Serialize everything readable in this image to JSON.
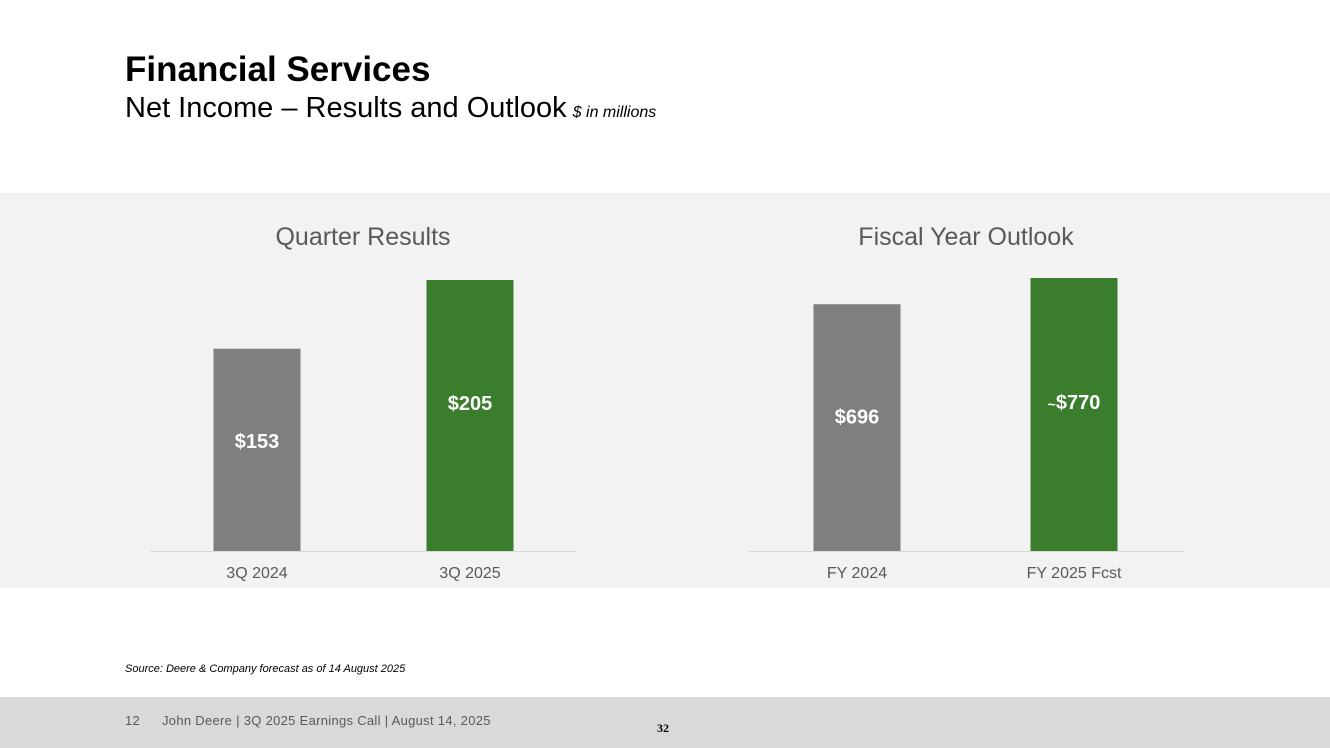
{
  "header": {
    "title": "Financial Services",
    "subtitle": "Net Income – Results and Outlook",
    "unit_note": "$ in millions"
  },
  "chart_data": [
    {
      "type": "bar",
      "title": "Quarter Results",
      "categories": [
        "3Q 2024",
        "3Q 2025"
      ],
      "values": [
        153,
        205
      ],
      "labels": [
        "$153",
        "$205"
      ],
      "label_prefixes": [
        "",
        ""
      ],
      "colors": [
        "#7f7f7f",
        "#3a7d2c"
      ],
      "ylim": [
        0,
        205
      ]
    },
    {
      "type": "bar",
      "title": "Fiscal Year Outlook",
      "categories": [
        "FY 2024",
        "FY 2025 Fcst"
      ],
      "values": [
        696,
        770
      ],
      "labels": [
        "$696",
        "$770"
      ],
      "label_prefixes": [
        "",
        "~"
      ],
      "colors": [
        "#7f7f7f",
        "#3a7d2c"
      ],
      "ylim": [
        0,
        770
      ]
    }
  ],
  "source": "Source: Deere & Company forecast as of 14 August 2025",
  "footer": {
    "page": "12",
    "text": "John Deere | 3Q 2025 Earnings Call | August 14, 2025",
    "slide_number": "32"
  }
}
